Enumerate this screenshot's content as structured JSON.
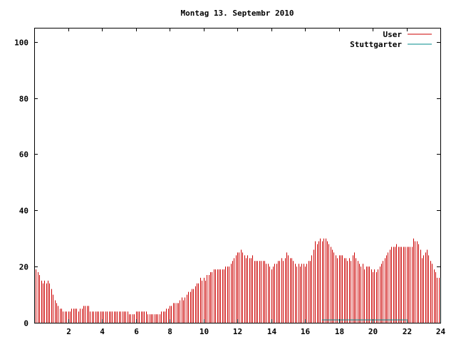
{
  "chart_data": {
    "type": "bar",
    "title": "Montag 13. Septembr 2010",
    "xlabel": "",
    "ylabel": "",
    "xlim": [
      0,
      24
    ],
    "ylim": [
      0,
      105
    ],
    "xticks": [
      "2",
      "4",
      "6",
      "8",
      "10",
      "12",
      "14",
      "16",
      "18",
      "20",
      "22",
      "24"
    ],
    "yticks": [
      "0",
      "20",
      "40",
      "60",
      "80",
      "100"
    ],
    "grid": false,
    "legend_position": "top-right",
    "legend": [
      "User",
      "Stuttgarter"
    ],
    "series": [
      {
        "name": "User",
        "color": "#cc0000",
        "values": [
          [
            0.0,
            18
          ],
          [
            0.1,
            19
          ],
          [
            0.2,
            18
          ],
          [
            0.3,
            17
          ],
          [
            0.4,
            15
          ],
          [
            0.5,
            14
          ],
          [
            0.6,
            15
          ],
          [
            0.7,
            14
          ],
          [
            0.8,
            15
          ],
          [
            0.9,
            14
          ],
          [
            1.0,
            12
          ],
          [
            1.1,
            10
          ],
          [
            1.2,
            8
          ],
          [
            1.3,
            7
          ],
          [
            1.4,
            6
          ],
          [
            1.5,
            5
          ],
          [
            1.6,
            5
          ],
          [
            1.7,
            4
          ],
          [
            1.8,
            4
          ],
          [
            1.9,
            4
          ],
          [
            2.0,
            4
          ],
          [
            2.1,
            4
          ],
          [
            2.2,
            5
          ],
          [
            2.3,
            5
          ],
          [
            2.4,
            5
          ],
          [
            2.5,
            5
          ],
          [
            2.6,
            4
          ],
          [
            2.7,
            5
          ],
          [
            2.8,
            5
          ],
          [
            2.9,
            6
          ],
          [
            3.0,
            6
          ],
          [
            3.1,
            6
          ],
          [
            3.2,
            6
          ],
          [
            3.3,
            4
          ],
          [
            3.4,
            4
          ],
          [
            3.5,
            4
          ],
          [
            3.6,
            4
          ],
          [
            3.7,
            4
          ],
          [
            3.8,
            4
          ],
          [
            3.9,
            4
          ],
          [
            4.0,
            4
          ],
          [
            4.1,
            4
          ],
          [
            4.2,
            4
          ],
          [
            4.3,
            4
          ],
          [
            4.4,
            4
          ],
          [
            4.5,
            4
          ],
          [
            4.6,
            4
          ],
          [
            4.7,
            4
          ],
          [
            4.8,
            4
          ],
          [
            4.9,
            4
          ],
          [
            5.0,
            4
          ],
          [
            5.1,
            4
          ],
          [
            5.2,
            4
          ],
          [
            5.3,
            4
          ],
          [
            5.4,
            4
          ],
          [
            5.5,
            4
          ],
          [
            5.6,
            3
          ],
          [
            5.7,
            3
          ],
          [
            5.8,
            3
          ],
          [
            5.9,
            3
          ],
          [
            6.0,
            4
          ],
          [
            6.1,
            4
          ],
          [
            6.2,
            4
          ],
          [
            6.3,
            4
          ],
          [
            6.4,
            4
          ],
          [
            6.5,
            4
          ],
          [
            6.6,
            4
          ],
          [
            6.7,
            3
          ],
          [
            6.8,
            3
          ],
          [
            6.9,
            3
          ],
          [
            7.0,
            3
          ],
          [
            7.1,
            3
          ],
          [
            7.2,
            3
          ],
          [
            7.3,
            3
          ],
          [
            7.4,
            3
          ],
          [
            7.5,
            4
          ],
          [
            7.6,
            4
          ],
          [
            7.7,
            4
          ],
          [
            7.8,
            5
          ],
          [
            7.9,
            5
          ],
          [
            8.0,
            6
          ],
          [
            8.1,
            6
          ],
          [
            8.2,
            7
          ],
          [
            8.3,
            7
          ],
          [
            8.4,
            7
          ],
          [
            8.5,
            7
          ],
          [
            8.6,
            8
          ],
          [
            8.7,
            9
          ],
          [
            8.8,
            8
          ],
          [
            8.9,
            9
          ],
          [
            9.0,
            10
          ],
          [
            9.1,
            11
          ],
          [
            9.2,
            11
          ],
          [
            9.3,
            12
          ],
          [
            9.4,
            12
          ],
          [
            9.5,
            13
          ],
          [
            9.6,
            14
          ],
          [
            9.7,
            14
          ],
          [
            9.8,
            16
          ],
          [
            9.9,
            15
          ],
          [
            10.0,
            16
          ],
          [
            10.1,
            15
          ],
          [
            10.2,
            17
          ],
          [
            10.3,
            17
          ],
          [
            10.4,
            18
          ],
          [
            10.5,
            18
          ],
          [
            10.6,
            19
          ],
          [
            10.7,
            19
          ],
          [
            10.8,
            19
          ],
          [
            10.9,
            19
          ],
          [
            11.0,
            19
          ],
          [
            11.1,
            19
          ],
          [
            11.2,
            19
          ],
          [
            11.3,
            20
          ],
          [
            11.4,
            20
          ],
          [
            11.5,
            20
          ],
          [
            11.6,
            21
          ],
          [
            11.7,
            22
          ],
          [
            11.8,
            23
          ],
          [
            11.9,
            24
          ],
          [
            12.0,
            25
          ],
          [
            12.1,
            25
          ],
          [
            12.2,
            26
          ],
          [
            12.3,
            25
          ],
          [
            12.4,
            24
          ],
          [
            12.5,
            23
          ],
          [
            12.6,
            24
          ],
          [
            12.7,
            23
          ],
          [
            12.8,
            23
          ],
          [
            12.9,
            24
          ],
          [
            13.0,
            22
          ],
          [
            13.1,
            22
          ],
          [
            13.2,
            22
          ],
          [
            13.3,
            22
          ],
          [
            13.4,
            22
          ],
          [
            13.5,
            22
          ],
          [
            13.6,
            22
          ],
          [
            13.7,
            21
          ],
          [
            13.8,
            21
          ],
          [
            13.9,
            20
          ],
          [
            14.0,
            19
          ],
          [
            14.1,
            20
          ],
          [
            14.2,
            21
          ],
          [
            14.3,
            21
          ],
          [
            14.4,
            22
          ],
          [
            14.5,
            22
          ],
          [
            14.6,
            23
          ],
          [
            14.7,
            22
          ],
          [
            14.8,
            23
          ],
          [
            14.9,
            25
          ],
          [
            15.0,
            24
          ],
          [
            15.1,
            23
          ],
          [
            15.2,
            23
          ],
          [
            15.3,
            22
          ],
          [
            15.4,
            21
          ],
          [
            15.5,
            20
          ],
          [
            15.6,
            21
          ],
          [
            15.7,
            20
          ],
          [
            15.8,
            21
          ],
          [
            15.9,
            21
          ],
          [
            16.0,
            20
          ],
          [
            16.1,
            21
          ],
          [
            16.2,
            22
          ],
          [
            16.3,
            22
          ],
          [
            16.4,
            24
          ],
          [
            16.5,
            26
          ],
          [
            16.6,
            29
          ],
          [
            16.7,
            28
          ],
          [
            16.8,
            29
          ],
          [
            16.9,
            30
          ],
          [
            17.0,
            29
          ],
          [
            17.1,
            30
          ],
          [
            17.2,
            30
          ],
          [
            17.3,
            29
          ],
          [
            17.4,
            28
          ],
          [
            17.5,
            27
          ],
          [
            17.6,
            26
          ],
          [
            17.7,
            25
          ],
          [
            17.8,
            24
          ],
          [
            17.9,
            23
          ],
          [
            18.0,
            24
          ],
          [
            18.1,
            24
          ],
          [
            18.2,
            24
          ],
          [
            18.3,
            23
          ],
          [
            18.4,
            23
          ],
          [
            18.5,
            22
          ],
          [
            18.6,
            23
          ],
          [
            18.7,
            22
          ],
          [
            18.8,
            24
          ],
          [
            18.9,
            25
          ],
          [
            19.0,
            23
          ],
          [
            19.1,
            22
          ],
          [
            19.2,
            21
          ],
          [
            19.3,
            20
          ],
          [
            19.4,
            21
          ],
          [
            19.5,
            19
          ],
          [
            19.6,
            20
          ],
          [
            19.7,
            20
          ],
          [
            19.8,
            20
          ],
          [
            19.9,
            19
          ],
          [
            20.0,
            18
          ],
          [
            20.1,
            19
          ],
          [
            20.2,
            18
          ],
          [
            20.3,
            19
          ],
          [
            20.4,
            20
          ],
          [
            20.5,
            21
          ],
          [
            20.6,
            22
          ],
          [
            20.7,
            23
          ],
          [
            20.8,
            24
          ],
          [
            20.9,
            25
          ],
          [
            21.0,
            26
          ],
          [
            21.1,
            27
          ],
          [
            21.2,
            27
          ],
          [
            21.3,
            27
          ],
          [
            21.4,
            28
          ],
          [
            21.5,
            27
          ],
          [
            21.6,
            27
          ],
          [
            21.7,
            27
          ],
          [
            21.8,
            27
          ],
          [
            21.9,
            27
          ],
          [
            22.0,
            27
          ],
          [
            22.1,
            27
          ],
          [
            22.2,
            27
          ],
          [
            22.3,
            27
          ],
          [
            22.4,
            30
          ],
          [
            22.5,
            29
          ],
          [
            22.6,
            29
          ],
          [
            22.7,
            28
          ],
          [
            22.8,
            26
          ],
          [
            22.9,
            23
          ],
          [
            23.0,
            24
          ],
          [
            23.1,
            25
          ],
          [
            23.2,
            26
          ],
          [
            23.3,
            24
          ],
          [
            23.4,
            22
          ],
          [
            23.5,
            21
          ],
          [
            23.6,
            19
          ],
          [
            23.7,
            18
          ],
          [
            23.8,
            16
          ],
          [
            23.9,
            16
          ]
        ]
      },
      {
        "name": "Stuttgarter",
        "color": "#008b8b",
        "values": [
          [
            17.0,
            1
          ],
          [
            22.0,
            1
          ]
        ]
      }
    ]
  }
}
